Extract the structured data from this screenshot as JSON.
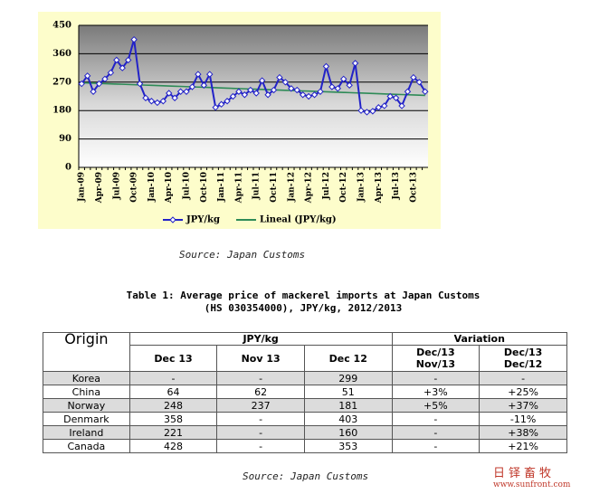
{
  "chart_data": {
    "type": "line",
    "categories": [
      "Jan-09",
      null,
      null,
      "Apr-09",
      null,
      null,
      "Jul-09",
      null,
      null,
      "Oct-09",
      null,
      null,
      "Jan-10",
      null,
      null,
      "Apr-10",
      null,
      null,
      "Jul-10",
      null,
      null,
      "Oct-10",
      null,
      null,
      "Jan-11",
      null,
      null,
      "Apr-11",
      null,
      null,
      "Jul-11",
      null,
      null,
      "Oct-11",
      null,
      null,
      "Jan-12",
      null,
      null,
      "Apr-12",
      null,
      null,
      "Jul-12",
      null,
      null,
      "Oct-12",
      null,
      null,
      "Jan-13",
      null,
      null,
      "Apr-13",
      null,
      null,
      "Jul-13",
      null,
      null,
      "Oct-13",
      null,
      null
    ],
    "series": [
      {
        "name": "JPY/kg",
        "color": "#2222c8",
        "values": [
          265,
          290,
          240,
          265,
          280,
          300,
          340,
          315,
          340,
          405,
          265,
          220,
          210,
          205,
          210,
          235,
          220,
          240,
          240,
          255,
          295,
          260,
          295,
          190,
          200,
          210,
          225,
          240,
          230,
          245,
          235,
          275,
          230,
          245,
          285,
          270,
          250,
          245,
          230,
          225,
          230,
          240,
          320,
          255,
          250,
          280,
          260,
          330,
          180,
          175,
          178,
          190,
          195,
          225,
          220,
          195,
          240,
          285,
          270,
          240
        ]
      },
      {
        "name": "Lineal (JPY/kg)",
        "color": "#2e8b57",
        "values": [
          268,
          267.3,
          266.6,
          266,
          265.3,
          264.6,
          263.9,
          263.3,
          262.6,
          261.9,
          261.2,
          260.5,
          259.9,
          259.2,
          258.5,
          257.8,
          257.2,
          256.5,
          255.8,
          255.1,
          254.4,
          253.8,
          253.1,
          252.4,
          251.7,
          251.1,
          250.4,
          249.7,
          249,
          248.3,
          247.7,
          247,
          246.3,
          245.6,
          245,
          244.3,
          243.6,
          242.9,
          242.2,
          241.6,
          240.9,
          240.2,
          239.5,
          238.9,
          238.2,
          237.5,
          236.8,
          236.1,
          235.5,
          234.8,
          234.1,
          233.4,
          232.8,
          232.1,
          231.4,
          230.7,
          230,
          229.4,
          228.7,
          228
        ]
      }
    ],
    "ylim": [
      0,
      450
    ],
    "yticks": [
      0,
      90,
      180,
      270,
      360,
      450
    ],
    "grid": true,
    "legend": "bottom"
  },
  "source_top": "Source: Japan Customs",
  "table_title": [
    "Table 1: Average price of mackerel imports at Japan Customs",
    "(HS 030354000), JPY/kg, 2012/2013"
  ],
  "table": {
    "header": {
      "origin": "Origin",
      "group1": "JPY/kg",
      "group2": "Variation",
      "columns": [
        [
          "Dec 13"
        ],
        [
          "Nov 13"
        ],
        [
          "Dec 12"
        ],
        [
          "Dec/13",
          "Nov/13"
        ],
        [
          "Dec/13",
          "Dec/12"
        ]
      ]
    },
    "rows": [
      [
        "Korea",
        "-",
        "-",
        "299",
        "-",
        "-"
      ],
      [
        "China",
        "64",
        "62",
        "51",
        "+3%",
        "+25%"
      ],
      [
        "Norway",
        "248",
        "237",
        "181",
        "+5%",
        "+37%"
      ],
      [
        "Denmark",
        "358",
        "-",
        "403",
        "-",
        "-11%"
      ],
      [
        "Ireland",
        "221",
        "-",
        "160",
        "-",
        "+38%"
      ],
      [
        "Canada",
        "428",
        "-",
        "353",
        "-",
        "+21%"
      ]
    ]
  },
  "source_bottom": "Source: Japan Customs",
  "logo": {
    "name": "日铎畜牧",
    "url": "www.sunfront.com"
  }
}
